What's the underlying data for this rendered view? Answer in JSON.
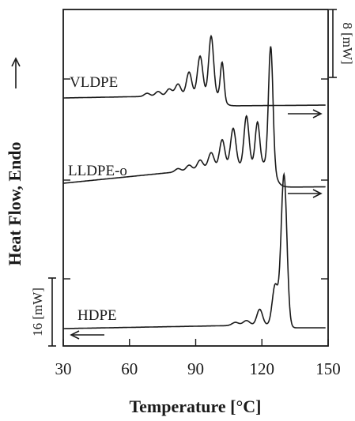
{
  "chart_data": {
    "type": "line",
    "title": "",
    "xlabel": "Temperature [°C]",
    "ylabel": "Heat Flow, Endo",
    "xlim": [
      30,
      150
    ],
    "x_ticks": [
      30,
      60,
      90,
      120,
      150
    ],
    "x_tick_labels": [
      "30",
      "60",
      "90",
      "120",
      "150"
    ],
    "grid": false,
    "scale_bars": [
      {
        "label": "8 [mW]",
        "side": "right"
      },
      {
        "label": "16 [mW]",
        "side": "left"
      }
    ],
    "series": [
      {
        "name": "VLDPE",
        "peaks_x": [
          68,
          73,
          78,
          82,
          87,
          92,
          97,
          102
        ],
        "main_peak_x": 97,
        "baseline_end_x": 149,
        "arrow": "right"
      },
      {
        "name": "LLDPE-o",
        "peaks_x": [
          82,
          87,
          92,
          97,
          102,
          107,
          113,
          118,
          124
        ],
        "main_peak_x": 124,
        "baseline_end_x": 149,
        "arrow": "right"
      },
      {
        "name": "HDPE",
        "peaks_x": [
          108,
          113,
          119,
          126,
          130
        ],
        "main_peak_x": 130,
        "baseline_end_x": 149,
        "arrow": "left"
      }
    ]
  }
}
